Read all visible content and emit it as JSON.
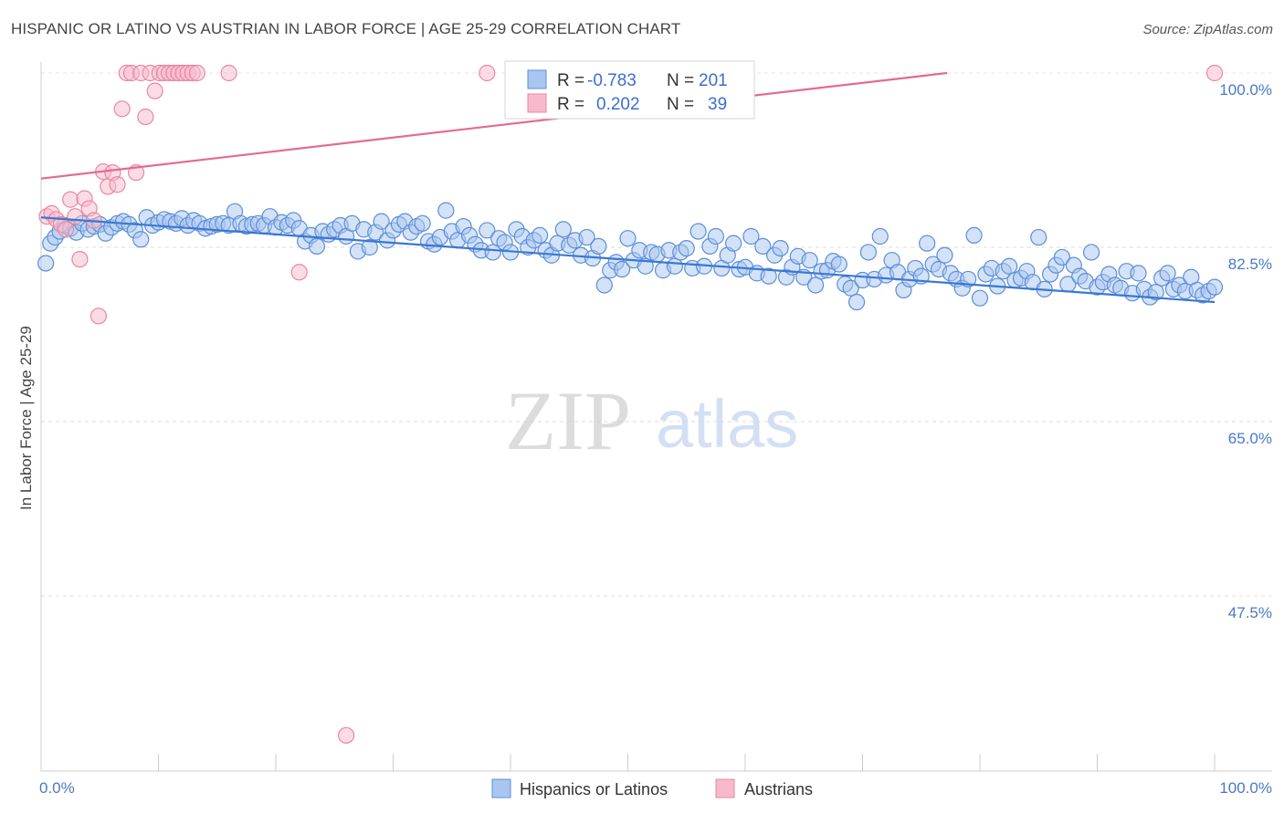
{
  "chart_data": {
    "type": "scatter",
    "title": "HISPANIC OR LATINO VS AUSTRIAN IN LABOR FORCE | AGE 25-29 CORRELATION CHART",
    "source": "Source: ZipAtlas.com",
    "watermark": {
      "zip": "ZIP",
      "atlas": "atlas"
    },
    "ylabel": "In Labor Force | Age 25-29",
    "xlim": [
      0,
      100
    ],
    "ylim": [
      30,
      102
    ],
    "x_tick_labels": [
      {
        "value": 0,
        "label": "0.0%"
      },
      {
        "value": 100,
        "label": "100.0%"
      }
    ],
    "y_tick_labels": [
      {
        "value": 100,
        "label": "100.0%"
      },
      {
        "value": 82.5,
        "label": "82.5%"
      },
      {
        "value": 65,
        "label": "65.0%"
      },
      {
        "value": 47.5,
        "label": "47.5%"
      }
    ],
    "grid": true,
    "legend_placement": "top-center",
    "stats_legend": [
      {
        "r_label": "R =",
        "r_value": "-0.783",
        "n_label": "N =",
        "n_value": "201",
        "color": "#a9c6f0",
        "edge": "#5b8fd9"
      },
      {
        "r_label": "R =",
        "r_value": "0.202",
        "n_label": "N =",
        "n_value": "39",
        "color": "#f8b9cc",
        "edge": "#e8889f"
      }
    ],
    "series": [
      {
        "name": "Hispanics or Latinos",
        "fill": "#a9c6f0",
        "edge": "#5b8fd9",
        "trend_color": "#3a78d4",
        "trend": {
          "x": [
            0,
            100
          ],
          "y": [
            85.5,
            77.0
          ]
        },
        "points": [
          [
            0.4,
            80.9
          ],
          [
            0.8,
            82.9
          ],
          [
            1.2,
            83.5
          ],
          [
            1.6,
            84.1
          ],
          [
            2.0,
            84.7
          ],
          [
            2.5,
            84.4
          ],
          [
            3.0,
            84.0
          ],
          [
            3.5,
            84.9
          ],
          [
            4.0,
            84.3
          ],
          [
            4.5,
            84.6
          ],
          [
            5.0,
            84.8
          ],
          [
            5.5,
            83.9
          ],
          [
            6.0,
            84.5
          ],
          [
            6.5,
            84.9
          ],
          [
            7.0,
            85.1
          ],
          [
            7.5,
            84.8
          ],
          [
            8.0,
            84.2
          ],
          [
            8.5,
            83.3
          ],
          [
            9.0,
            85.5
          ],
          [
            9.5,
            84.7
          ],
          [
            10.0,
            85.0
          ],
          [
            10.5,
            85.3
          ],
          [
            11.0,
            85.1
          ],
          [
            11.5,
            84.9
          ],
          [
            12.0,
            85.4
          ],
          [
            12.5,
            84.7
          ],
          [
            13.0,
            85.2
          ],
          [
            13.5,
            84.9
          ],
          [
            14.0,
            84.4
          ],
          [
            14.5,
            84.6
          ],
          [
            15.0,
            84.8
          ],
          [
            15.5,
            84.9
          ],
          [
            16.0,
            84.7
          ],
          [
            16.5,
            86.1
          ],
          [
            17.0,
            84.9
          ],
          [
            17.5,
            84.6
          ],
          [
            18.0,
            84.8
          ],
          [
            18.5,
            84.9
          ],
          [
            19.0,
            84.7
          ],
          [
            19.5,
            85.6
          ],
          [
            20.0,
            84.5
          ],
          [
            20.5,
            85.0
          ],
          [
            21.0,
            84.7
          ],
          [
            21.5,
            85.2
          ],
          [
            22.0,
            84.4
          ],
          [
            22.5,
            83.1
          ],
          [
            23.0,
            83.7
          ],
          [
            23.5,
            82.6
          ],
          [
            24.0,
            84.1
          ],
          [
            24.5,
            83.8
          ],
          [
            25.0,
            84.3
          ],
          [
            25.5,
            84.7
          ],
          [
            26.0,
            83.6
          ],
          [
            26.5,
            84.9
          ],
          [
            27.0,
            82.1
          ],
          [
            27.5,
            84.3
          ],
          [
            28.0,
            82.5
          ],
          [
            28.5,
            84.0
          ],
          [
            29.0,
            85.1
          ],
          [
            29.5,
            83.2
          ],
          [
            30.0,
            84.2
          ],
          [
            30.5,
            84.8
          ],
          [
            31.0,
            85.1
          ],
          [
            31.5,
            84.0
          ],
          [
            32.0,
            84.6
          ],
          [
            32.5,
            84.9
          ],
          [
            33.0,
            83.1
          ],
          [
            33.5,
            82.8
          ],
          [
            34.0,
            83.5
          ],
          [
            34.5,
            86.2
          ],
          [
            35.0,
            84.1
          ],
          [
            35.5,
            83.2
          ],
          [
            36.0,
            84.6
          ],
          [
            36.5,
            83.7
          ],
          [
            37.0,
            82.8
          ],
          [
            37.5,
            82.2
          ],
          [
            38.0,
            84.2
          ],
          [
            38.5,
            82.0
          ],
          [
            39.0,
            83.4
          ],
          [
            39.5,
            83.0
          ],
          [
            40.0,
            82.0
          ],
          [
            40.5,
            84.3
          ],
          [
            41.0,
            83.6
          ],
          [
            41.5,
            82.5
          ],
          [
            42.0,
            83.2
          ],
          [
            42.5,
            83.7
          ],
          [
            43.0,
            82.2
          ],
          [
            43.5,
            81.7
          ],
          [
            44.0,
            82.9
          ],
          [
            44.5,
            84.3
          ],
          [
            45.0,
            82.7
          ],
          [
            45.5,
            83.2
          ],
          [
            46.0,
            81.7
          ],
          [
            46.5,
            83.5
          ],
          [
            47.0,
            81.4
          ],
          [
            47.5,
            82.6
          ],
          [
            48.0,
            78.7
          ],
          [
            48.5,
            80.2
          ],
          [
            49.0,
            81.0
          ],
          [
            49.5,
            80.3
          ],
          [
            50.0,
            83.4
          ],
          [
            50.5,
            81.2
          ],
          [
            51.0,
            82.2
          ],
          [
            51.5,
            80.6
          ],
          [
            52.0,
            82.0
          ],
          [
            52.5,
            81.8
          ],
          [
            53.0,
            80.2
          ],
          [
            53.5,
            82.2
          ],
          [
            54.0,
            80.6
          ],
          [
            54.5,
            82.0
          ],
          [
            55.0,
            82.4
          ],
          [
            55.5,
            80.4
          ],
          [
            56.0,
            84.1
          ],
          [
            56.5,
            80.6
          ],
          [
            57.0,
            82.6
          ],
          [
            57.5,
            83.6
          ],
          [
            58.0,
            80.4
          ],
          [
            58.5,
            81.7
          ],
          [
            59.0,
            82.9
          ],
          [
            59.5,
            80.3
          ],
          [
            60.0,
            80.5
          ],
          [
            60.5,
            83.6
          ],
          [
            61.0,
            79.9
          ],
          [
            61.5,
            82.6
          ],
          [
            62.0,
            79.6
          ],
          [
            62.5,
            81.7
          ],
          [
            63.0,
            82.4
          ],
          [
            63.5,
            79.5
          ],
          [
            64.0,
            80.5
          ],
          [
            64.5,
            81.6
          ],
          [
            65.0,
            79.5
          ],
          [
            65.5,
            81.2
          ],
          [
            66.0,
            78.7
          ],
          [
            66.5,
            80.1
          ],
          [
            67.0,
            80.2
          ],
          [
            67.5,
            81.1
          ],
          [
            68.0,
            80.8
          ],
          [
            68.5,
            78.8
          ],
          [
            69.0,
            78.4
          ],
          [
            69.5,
            77.0
          ],
          [
            70.0,
            79.2
          ],
          [
            70.5,
            82.0
          ],
          [
            71.0,
            79.3
          ],
          [
            71.5,
            83.6
          ],
          [
            72.0,
            79.7
          ],
          [
            72.5,
            81.2
          ],
          [
            73.0,
            80.0
          ],
          [
            73.5,
            78.2
          ],
          [
            74.0,
            79.3
          ],
          [
            74.5,
            80.4
          ],
          [
            75.0,
            79.6
          ],
          [
            75.5,
            82.9
          ],
          [
            76.0,
            80.8
          ],
          [
            76.5,
            80.3
          ],
          [
            77.0,
            81.7
          ],
          [
            77.5,
            79.9
          ],
          [
            78.0,
            79.3
          ],
          [
            78.5,
            78.4
          ],
          [
            79.0,
            79.3
          ],
          [
            79.5,
            83.7
          ],
          [
            80.0,
            77.4
          ],
          [
            80.5,
            79.8
          ],
          [
            81.0,
            80.4
          ],
          [
            81.5,
            78.6
          ],
          [
            82.0,
            80.1
          ],
          [
            82.5,
            80.6
          ],
          [
            83.0,
            79.2
          ],
          [
            83.5,
            79.4
          ],
          [
            84.0,
            80.1
          ],
          [
            84.5,
            79.0
          ],
          [
            85.0,
            83.5
          ],
          [
            85.5,
            78.3
          ],
          [
            86.0,
            79.8
          ],
          [
            86.5,
            80.7
          ],
          [
            87.0,
            81.5
          ],
          [
            87.5,
            78.8
          ],
          [
            88.0,
            80.7
          ],
          [
            88.5,
            79.6
          ],
          [
            89.0,
            79.1
          ],
          [
            89.5,
            82.0
          ],
          [
            90.0,
            78.5
          ],
          [
            90.5,
            79.0
          ],
          [
            91.0,
            79.8
          ],
          [
            91.5,
            78.7
          ],
          [
            92.0,
            78.4
          ],
          [
            92.5,
            80.1
          ],
          [
            93.0,
            77.9
          ],
          [
            93.5,
            79.9
          ],
          [
            94.0,
            78.3
          ],
          [
            94.5,
            77.5
          ],
          [
            95.0,
            78.0
          ],
          [
            95.5,
            79.4
          ],
          [
            96.0,
            79.9
          ],
          [
            96.5,
            78.3
          ],
          [
            97.0,
            78.7
          ],
          [
            97.5,
            78.1
          ],
          [
            98.0,
            79.5
          ],
          [
            98.5,
            78.2
          ],
          [
            99.0,
            77.7
          ],
          [
            99.5,
            78.1
          ],
          [
            100.0,
            78.5
          ]
        ]
      },
      {
        "name": "Austrians",
        "fill": "#f8b9cc",
        "edge": "#e8889f",
        "trend_color": "#e46a90",
        "trend": {
          "x": [
            0,
            77.2
          ],
          "y": [
            89.4,
            100.0
          ]
        },
        "points": [
          [
            0.5,
            85.6
          ],
          [
            0.9,
            85.9
          ],
          [
            1.3,
            85.3
          ],
          [
            1.7,
            84.8
          ],
          [
            2.1,
            84.3
          ],
          [
            2.5,
            87.3
          ],
          [
            2.9,
            85.6
          ],
          [
            3.3,
            81.3
          ],
          [
            3.7,
            87.4
          ],
          [
            4.1,
            86.4
          ],
          [
            4.5,
            85.2
          ],
          [
            4.9,
            75.6
          ],
          [
            5.3,
            90.1
          ],
          [
            5.7,
            88.6
          ],
          [
            6.1,
            90.0
          ],
          [
            6.5,
            88.8
          ],
          [
            6.9,
            96.4
          ],
          [
            7.3,
            100.0
          ],
          [
            7.7,
            100.0
          ],
          [
            8.1,
            90.0
          ],
          [
            8.5,
            100.0
          ],
          [
            8.9,
            95.6
          ],
          [
            9.3,
            100.0
          ],
          [
            9.7,
            98.2
          ],
          [
            10.1,
            100.0
          ],
          [
            10.5,
            100.0
          ],
          [
            10.9,
            100.0
          ],
          [
            11.3,
            100.0
          ],
          [
            11.7,
            100.0
          ],
          [
            12.1,
            100.0
          ],
          [
            12.5,
            100.0
          ],
          [
            12.9,
            100.0
          ],
          [
            13.3,
            100.0
          ],
          [
            16.0,
            100.0
          ],
          [
            22.0,
            80.0
          ],
          [
            26.0,
            33.5
          ],
          [
            38.0,
            100.0
          ],
          [
            45.0,
            100.0
          ],
          [
            100.0,
            100.0
          ]
        ]
      }
    ],
    "bottom_legend": [
      {
        "label": "Hispanics or Latinos",
        "color": "#a9c6f0",
        "edge": "#5b8fd9"
      },
      {
        "label": "Austrians",
        "color": "#f8b9cc",
        "edge": "#e8889f"
      }
    ]
  }
}
